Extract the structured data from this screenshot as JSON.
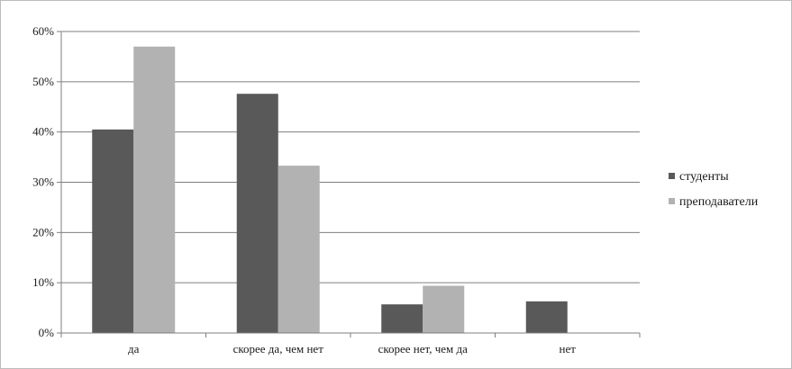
{
  "chart_data": {
    "type": "bar",
    "categories": [
      "да",
      "скорее да, чем нет",
      "скорее нет, чем да",
      "нет"
    ],
    "series": [
      {
        "name": "студенты",
        "values": [
          40.5,
          47.6,
          5.7,
          6.3
        ],
        "color": "#595959"
      },
      {
        "name": "преподаватели",
        "values": [
          57.0,
          33.3,
          9.4,
          0
        ],
        "color": "#b2b2b2"
      }
    ],
    "y_ticks": [
      "0%",
      "10%",
      "20%",
      "30%",
      "40%",
      "50%",
      "60%"
    ],
    "ylim": [
      0,
      60
    ],
    "y_unit": "%",
    "grid": true,
    "legend_position": "right",
    "title": "",
    "xlabel": "",
    "ylabel": ""
  }
}
